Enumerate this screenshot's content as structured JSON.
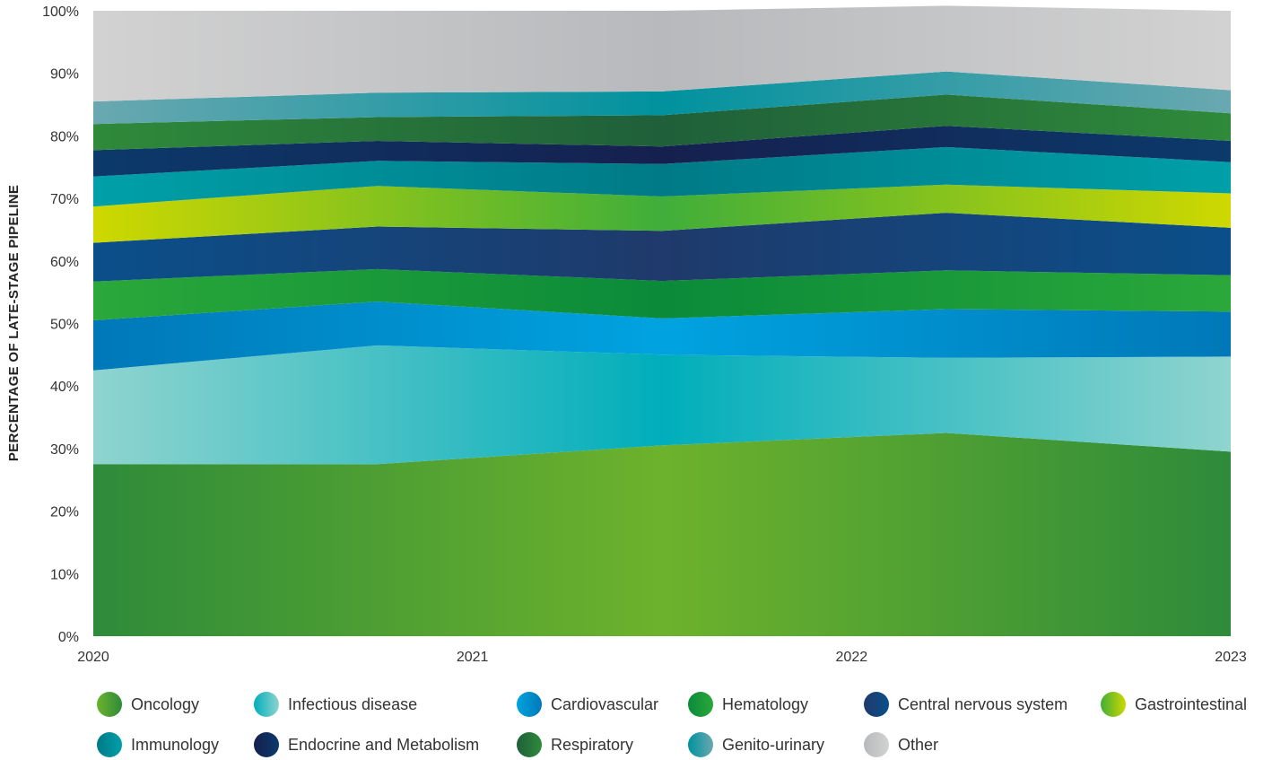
{
  "chart_data": {
    "type": "area",
    "stacked": true,
    "ylabel": "PERCENTAGE OF LATE-STAGE PIPELINE",
    "xlabel": "",
    "title": "",
    "x": [
      2020,
      2020.75,
      2021.5,
      2022.25,
      2023
    ],
    "x_ticks": [
      "2020",
      "2021",
      "2022",
      "2023"
    ],
    "y_ticks": [
      "0%",
      "10%",
      "20%",
      "30%",
      "40%",
      "50%",
      "60%",
      "70%",
      "80%",
      "90%",
      "100%"
    ],
    "ylim": [
      0,
      100
    ],
    "grid": false,
    "legend_position": "bottom",
    "series": [
      {
        "name": "Oncology",
        "values": [
          27.5,
          27.5,
          30.5,
          32.5,
          29.5
        ],
        "color": "#6db22c",
        "color2": "#2e8b3a"
      },
      {
        "name": "Infectious disease",
        "values": [
          15.0,
          19.0,
          14.5,
          12.0,
          15.2
        ],
        "color": "#00aebb",
        "color2": "#8fd4cf"
      },
      {
        "name": "Cardiovascular",
        "values": [
          8.0,
          7.0,
          5.8,
          7.8,
          7.2
        ],
        "color": "#00a3e0",
        "color2": "#0078b8"
      },
      {
        "name": "Hematology",
        "values": [
          6.2,
          5.2,
          6.0,
          6.2,
          5.8
        ],
        "color": "#0b8a3a",
        "color2": "#2aa83a"
      },
      {
        "name": "Central nervous system",
        "values": [
          6.2,
          6.8,
          8.0,
          9.2,
          7.6
        ],
        "color": "#1f3a6b",
        "color2": "#0b4f8a"
      },
      {
        "name": "Gastrointestinal",
        "values": [
          5.8,
          6.5,
          5.5,
          4.5,
          5.5
        ],
        "color": "#3fae3a",
        "color2": "#cfd800"
      },
      {
        "name": "Immunology",
        "values": [
          4.8,
          4.0,
          5.2,
          6.0,
          5.0
        ],
        "color": "#007a87",
        "color2": "#00a0a8"
      },
      {
        "name": "Endocrine and Metabolism",
        "values": [
          4.2,
          3.2,
          2.8,
          3.4,
          3.4
        ],
        "color": "#16204f",
        "color2": "#0b3a6b"
      },
      {
        "name": "Respiratory",
        "values": [
          4.2,
          3.8,
          5.0,
          5.0,
          4.4
        ],
        "color": "#1f5f3a",
        "color2": "#2f8a3a"
      },
      {
        "name": "Genito-urinary",
        "values": [
          3.6,
          3.9,
          3.8,
          3.7,
          3.7
        ],
        "color": "#00929e",
        "color2": "#6aa8b0"
      },
      {
        "name": "Other",
        "values": [
          14.5,
          13.1,
          12.9,
          10.5,
          12.7
        ],
        "color": "#b7b9bc",
        "color2": "#d2d2d2"
      }
    ]
  },
  "legend": [
    {
      "label": "Oncology",
      "icon": "oncology-swatch",
      "color": "#6db22c",
      "color2": "#2e8b3a"
    },
    {
      "label": "Infectious disease",
      "icon": "infectious-disease-swatch",
      "color": "#00aebb",
      "color2": "#8fd4cf"
    },
    {
      "label": "Cardiovascular",
      "icon": "cardiovascular-swatch",
      "color": "#00a3e0",
      "color2": "#0078b8"
    },
    {
      "label": "Hematology",
      "icon": "hematology-swatch",
      "color": "#0b8a3a",
      "color2": "#2aa83a"
    },
    {
      "label": "Central nervous system",
      "icon": "central-nervous-system-swatch",
      "color": "#1f3a6b",
      "color2": "#0b4f8a"
    },
    {
      "label": "Gastrointestinal",
      "icon": "gastrointestinal-swatch",
      "color": "#3fae3a",
      "color2": "#cfd800"
    },
    {
      "label": "Immunology",
      "icon": "immunology-swatch",
      "color": "#007a87",
      "color2": "#00a0a8"
    },
    {
      "label": "Endocrine and Metabolism",
      "icon": "endocrine-metabolism-swatch",
      "color": "#16204f",
      "color2": "#0b3a6b"
    },
    {
      "label": "Respiratory",
      "icon": "respiratory-swatch",
      "color": "#1f5f3a",
      "color2": "#2f8a3a"
    },
    {
      "label": "Genito-urinary",
      "icon": "genito-urinary-swatch",
      "color": "#00929e",
      "color2": "#6aa8b0"
    },
    {
      "label": "Other",
      "icon": "other-swatch",
      "color": "#b7b9bc",
      "color2": "#d2d2d2"
    }
  ]
}
